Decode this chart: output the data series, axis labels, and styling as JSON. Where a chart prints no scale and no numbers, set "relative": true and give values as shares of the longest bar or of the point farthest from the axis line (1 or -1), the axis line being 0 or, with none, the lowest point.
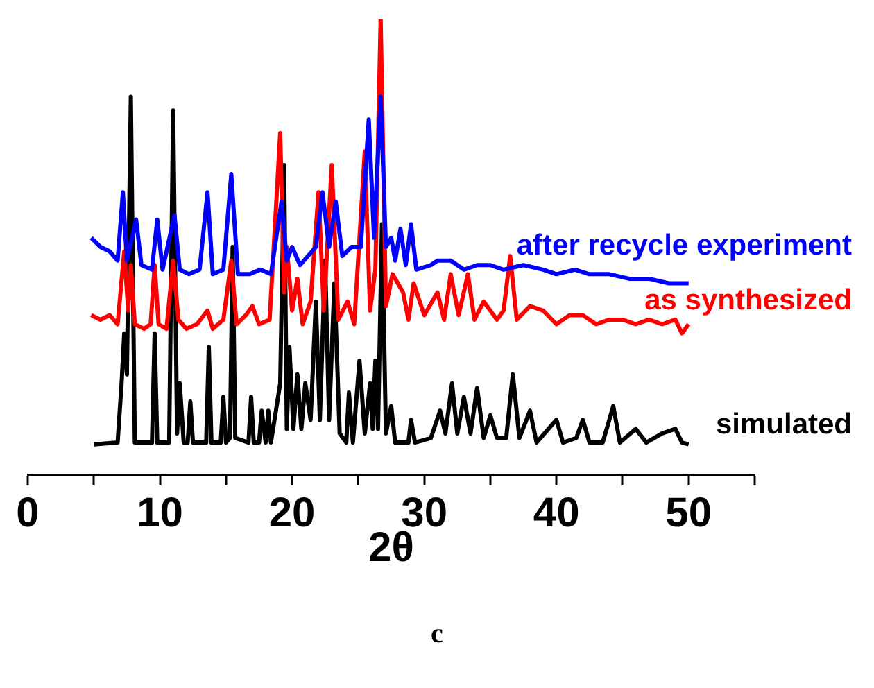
{
  "chart_data": {
    "type": "line",
    "relative": true,
    "xlabel": "2θ",
    "annotations": [
      "c"
    ],
    "xlim": [
      0,
      55
    ],
    "xticks": [
      0,
      {
        "value": 5,
        "label": null
      },
      10,
      {
        "value": 15,
        "label": null
      },
      20,
      {
        "value": 25,
        "label": null
      },
      30,
      {
        "value": 35,
        "label": null
      },
      40,
      {
        "value": 45,
        "label": null
      },
      50,
      {
        "value": 55,
        "label": null
      }
    ],
    "grid": false,
    "legend": false,
    "marker": "none",
    "line_style": "solid",
    "series": [
      {
        "name": "after recycle experiment",
        "color": "#0000ff",
        "x": [
          4.8,
          5.5,
          6.2,
          6.8,
          7.2,
          7.5,
          8.2,
          8.6,
          9.4,
          9.8,
          10.2,
          11.1,
          11.5,
          12.2,
          13.0,
          13.6,
          14.0,
          14.8,
          15.4,
          15.9,
          16.8,
          17.6,
          18.4,
          19.2,
          19.6,
          20.0,
          20.6,
          21.2,
          21.8,
          22.3,
          22.8,
          23.3,
          23.8,
          24.5,
          25.2,
          25.8,
          26.2,
          26.7,
          27.1,
          27.5,
          27.8,
          28.2,
          28.6,
          29.0,
          29.4,
          30.5,
          31.0,
          32.0,
          33.0,
          34.0,
          35.0,
          36.0,
          37.5,
          39.0,
          40.0,
          41.4,
          42.5,
          44.0,
          45.5,
          47.0,
          48.5,
          50.0
        ],
        "values": [
          0.52,
          0.5,
          0.49,
          0.47,
          0.62,
          0.47,
          0.56,
          0.46,
          0.45,
          0.56,
          0.45,
          0.57,
          0.45,
          0.44,
          0.45,
          0.62,
          0.44,
          0.45,
          0.66,
          0.44,
          0.44,
          0.45,
          0.44,
          0.6,
          0.47,
          0.5,
          0.46,
          0.48,
          0.5,
          0.62,
          0.5,
          0.6,
          0.48,
          0.5,
          0.5,
          0.78,
          0.52,
          0.83,
          0.5,
          0.52,
          0.47,
          0.54,
          0.46,
          0.55,
          0.45,
          0.46,
          0.47,
          0.47,
          0.45,
          0.46,
          0.46,
          0.45,
          0.46,
          0.45,
          0.44,
          0.45,
          0.44,
          0.44,
          0.43,
          0.43,
          0.42,
          0.42
        ]
      },
      {
        "name": "as synthesized",
        "color": "#ff0000",
        "x": [
          4.8,
          5.5,
          6.2,
          6.8,
          7.3,
          7.6,
          7.8,
          8.1,
          8.8,
          9.3,
          9.6,
          9.9,
          10.5,
          11.0,
          11.4,
          12.0,
          12.8,
          13.6,
          14.0,
          14.8,
          15.4,
          15.8,
          16.5,
          17.0,
          17.5,
          18.3,
          19.1,
          19.4,
          19.6,
          20.0,
          20.4,
          20.8,
          21.4,
          22.0,
          22.4,
          23.0,
          23.5,
          24.2,
          24.7,
          25.5,
          25.9,
          26.3,
          26.7,
          27.1,
          27.6,
          28.4,
          28.8,
          29.2,
          30.0,
          31.0,
          31.5,
          32.0,
          32.6,
          33.3,
          33.8,
          34.5,
          35.5,
          36.0,
          36.5,
          37.0,
          38.0,
          39.0,
          40.0,
          41.0,
          42.0,
          43.0,
          44.0,
          45.0,
          46.0,
          47.0,
          48.0,
          49.0,
          49.5,
          50.0
        ],
        "values": [
          0.35,
          0.34,
          0.35,
          0.33,
          0.49,
          0.36,
          0.46,
          0.33,
          0.32,
          0.33,
          0.46,
          0.33,
          0.32,
          0.47,
          0.34,
          0.32,
          0.33,
          0.36,
          0.32,
          0.34,
          0.47,
          0.33,
          0.35,
          0.37,
          0.33,
          0.34,
          0.75,
          0.4,
          0.5,
          0.36,
          0.43,
          0.33,
          0.38,
          0.62,
          0.36,
          0.68,
          0.34,
          0.38,
          0.33,
          0.71,
          0.36,
          0.45,
          1.0,
          0.37,
          0.44,
          0.4,
          0.34,
          0.42,
          0.35,
          0.4,
          0.34,
          0.44,
          0.35,
          0.44,
          0.34,
          0.38,
          0.34,
          0.36,
          0.48,
          0.34,
          0.37,
          0.36,
          0.33,
          0.35,
          0.35,
          0.33,
          0.34,
          0.34,
          0.33,
          0.34,
          0.33,
          0.34,
          0.31,
          0.33
        ]
      },
      {
        "name": "simulated",
        "color": "#000000",
        "x": [
          5,
          6.8,
          7.1,
          7.3,
          7.5,
          7.8,
          8.1,
          9.4,
          9.6,
          9.8,
          10.7,
          11.0,
          11.3,
          11.5,
          11.8,
          12.1,
          12.3,
          12.5,
          13.5,
          13.7,
          13.9,
          14.6,
          14.8,
          15.0,
          15.3,
          15.5,
          15.7,
          16.7,
          16.9,
          17.1,
          17.5,
          17.7,
          18.0,
          18.2,
          18.4,
          19.1,
          19.4,
          19.6,
          19.8,
          20.1,
          20.4,
          20.7,
          21.0,
          21.4,
          21.8,
          22.1,
          22.5,
          22.8,
          23.2,
          23.6,
          24.1,
          24.3,
          24.6,
          25.1,
          25.5,
          25.9,
          26.1,
          26.3,
          26.5,
          26.8,
          27.1,
          27.5,
          27.8,
          28.8,
          29.0,
          29.3,
          30.5,
          31.2,
          31.6,
          32.1,
          32.5,
          33.0,
          33.5,
          34.0,
          34.5,
          35.0,
          35.5,
          36.2,
          36.7,
          37.2,
          38.0,
          38.5,
          40.0,
          40.5,
          41.5,
          42.0,
          42.5,
          43.5,
          44.3,
          44.8,
          46,
          46.8,
          48,
          49,
          49.5,
          50
        ],
        "values": [
          0.066,
          0.07,
          0.2,
          0.31,
          0.22,
          0.83,
          0.07,
          0.07,
          0.31,
          0.07,
          0.07,
          0.8,
          0.09,
          0.2,
          0.07,
          0.07,
          0.16,
          0.07,
          0.07,
          0.28,
          0.07,
          0.07,
          0.17,
          0.07,
          0.08,
          0.5,
          0.08,
          0.07,
          0.17,
          0.07,
          0.07,
          0.14,
          0.07,
          0.14,
          0.07,
          0.2,
          0.68,
          0.1,
          0.28,
          0.1,
          0.22,
          0.1,
          0.2,
          0.12,
          0.38,
          0.12,
          0.47,
          0.12,
          0.42,
          0.09,
          0.07,
          0.18,
          0.07,
          0.25,
          0.09,
          0.2,
          0.1,
          0.25,
          0.1,
          0.55,
          0.09,
          0.15,
          0.07,
          0.07,
          0.12,
          0.07,
          0.08,
          0.14,
          0.09,
          0.2,
          0.09,
          0.17,
          0.09,
          0.19,
          0.08,
          0.13,
          0.08,
          0.08,
          0.22,
          0.08,
          0.14,
          0.07,
          0.12,
          0.07,
          0.08,
          0.12,
          0.07,
          0.07,
          0.15,
          0.07,
          0.1,
          0.07,
          0.09,
          0.1,
          0.07,
          0.066
        ]
      }
    ]
  }
}
